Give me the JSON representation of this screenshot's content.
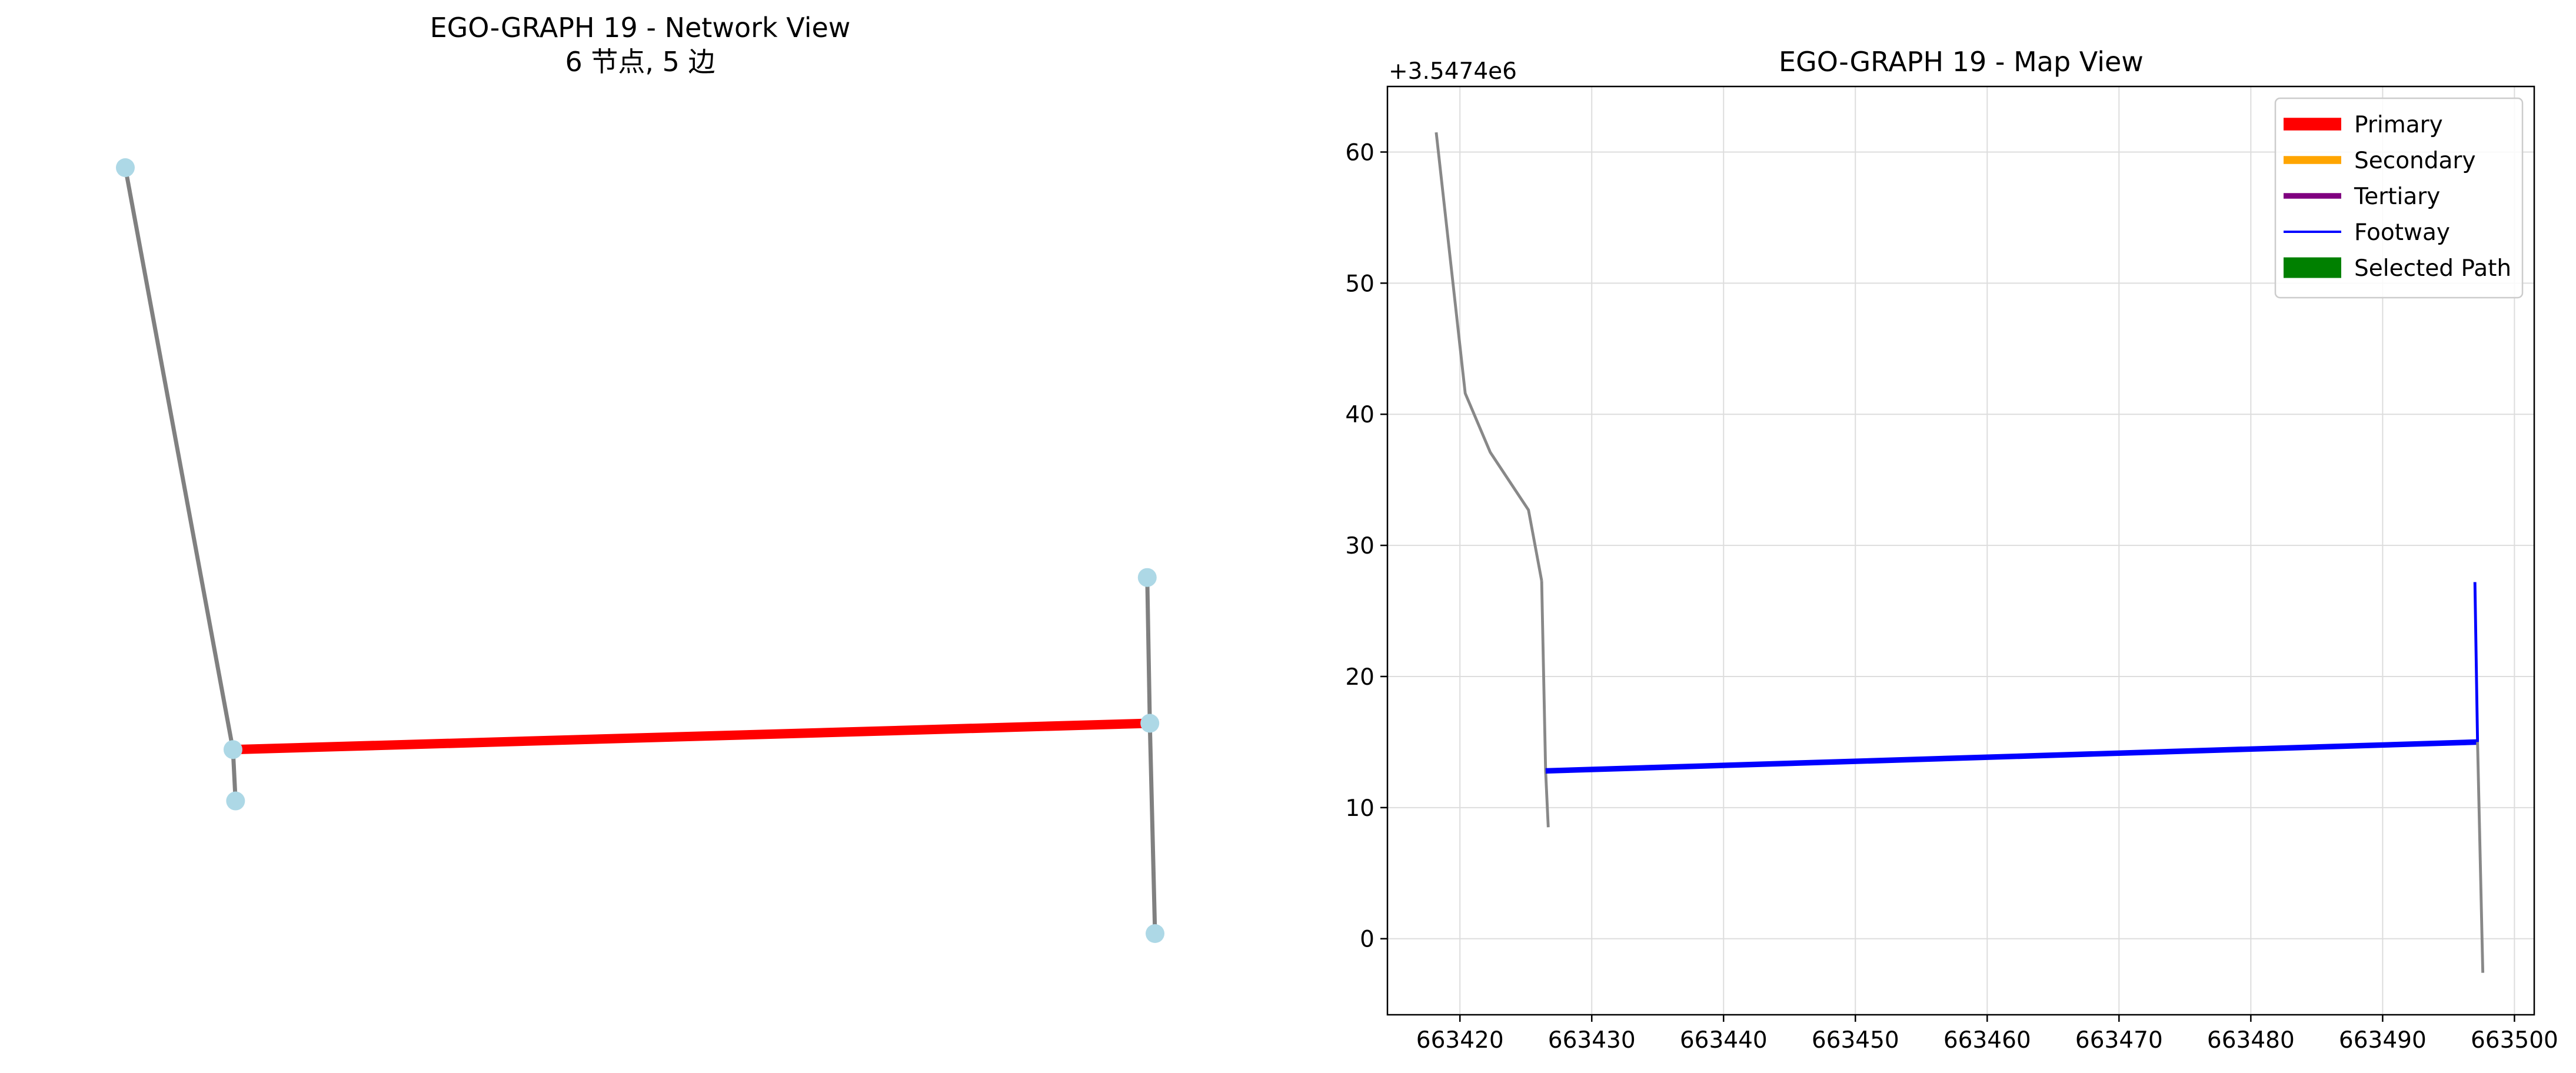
{
  "network_view": {
    "title_line1": "EGO-GRAPH 19 - Network View",
    "title_line2": "6 节点, 5 边",
    "colors": {
      "node": "#add8e6",
      "edge": "#808080",
      "selected_edge": "#ff0000"
    }
  },
  "chart_data": [
    {
      "type": "network",
      "title": "EGO-GRAPH 19 - Network View\n6 节点, 5 边",
      "nodes": [
        {
          "id": "n0",
          "x": 663418.2,
          "y": 61.5
        },
        {
          "id": "n1",
          "x": 663426.5,
          "y": 12.8
        },
        {
          "id": "n2",
          "x": 663426.7,
          "y": 8.5
        },
        {
          "id": "n3",
          "x": 663497.0,
          "y": 27.2
        },
        {
          "id": "n4",
          "x": 663497.2,
          "y": 15.0
        },
        {
          "id": "n5",
          "x": 663497.6,
          "y": -2.6
        }
      ],
      "edges": [
        {
          "source": "n0",
          "target": "n1",
          "style": "normal"
        },
        {
          "source": "n1",
          "target": "n2",
          "style": "normal"
        },
        {
          "source": "n1",
          "target": "n4",
          "style": "selected"
        },
        {
          "source": "n3",
          "target": "n4",
          "style": "normal"
        },
        {
          "source": "n4",
          "target": "n5",
          "style": "normal"
        }
      ]
    },
    {
      "type": "line",
      "title": "EGO-GRAPH 19 - Map View",
      "xlabel": "",
      "ylabel": "",
      "y_offset_label": "+3.5474e6",
      "xlim": [
        663414.5,
        663501.5
      ],
      "ylim": [
        -5.8,
        65
      ],
      "xticks": [
        663420,
        663430,
        663440,
        663450,
        663460,
        663470,
        663480,
        663490,
        663500
      ],
      "yticks": [
        0,
        10,
        20,
        30,
        40,
        50,
        60
      ],
      "grid": true,
      "legend_position": "upper-right",
      "legend": [
        {
          "label": "Primary",
          "color": "#ff0000",
          "width": 8
        },
        {
          "label": "Secondary",
          "color": "#ffa500",
          "width": 5
        },
        {
          "label": "Tertiary",
          "color": "#800080",
          "width": 3.5
        },
        {
          "label": "Footway",
          "color": "#0000ff",
          "width": 1.5
        },
        {
          "label": "Selected Path",
          "color": "#008000",
          "width": 13
        }
      ],
      "series": [
        {
          "color": "#888888",
          "width": 1.8,
          "x": [
            663418.2,
            663420.4,
            663422.3,
            663425.2,
            663426.2
          ],
          "y": [
            61.5,
            41.6,
            37.1,
            32.7,
            27.3
          ]
        },
        {
          "color": "#888888",
          "width": 1.8,
          "x": [
            663426.2,
            663426.5,
            663426.7
          ],
          "y": [
            27.3,
            12.8,
            8.5
          ]
        },
        {
          "color": "#0000ff",
          "width": 3.5,
          "x": [
            663426.5,
            663497.2
          ],
          "y": [
            12.8,
            15.0
          ]
        },
        {
          "color": "#0000ff",
          "width": 1.8,
          "x": [
            663497.0,
            663497.2
          ],
          "y": [
            27.2,
            15.0
          ]
        },
        {
          "color": "#888888",
          "width": 1.8,
          "x": [
            663497.2,
            663497.6
          ],
          "y": [
            15.0,
            -2.6
          ]
        }
      ]
    }
  ]
}
